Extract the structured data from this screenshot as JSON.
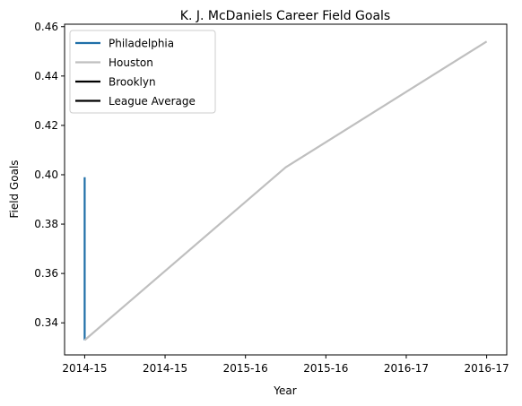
{
  "chart_data": {
    "type": "line",
    "title": "K. J. McDaniels Career Field Goals",
    "xlabel": "Year",
    "ylabel": "Field Goals",
    "x_ticks": [
      "2014-15",
      "2014-15",
      "2015-16",
      "2015-16",
      "2016-17",
      "2016-17"
    ],
    "x_range": [
      -0.1,
      2.1
    ],
    "y_ticks": [
      0.34,
      0.36,
      0.38,
      0.4,
      0.42,
      0.44,
      0.46
    ],
    "ylim": [
      0.327,
      0.461
    ],
    "grid": false,
    "legend_position": "top-left",
    "series": [
      {
        "name": "Philadelphia",
        "color": "#1f6fa8",
        "points": [
          {
            "x": 0,
            "y": 0.333
          },
          {
            "x": 0,
            "y": 0.399
          }
        ]
      },
      {
        "name": "Houston",
        "color": "#bfbfbf",
        "points": [
          {
            "x": 0,
            "y": 0.333
          },
          {
            "x": 1,
            "y": 0.403
          },
          {
            "x": 2,
            "y": 0.454
          }
        ]
      },
      {
        "name": "Brooklyn",
        "color": "#000000",
        "points": []
      },
      {
        "name": "League Average",
        "color": "#000000",
        "points": []
      }
    ]
  }
}
